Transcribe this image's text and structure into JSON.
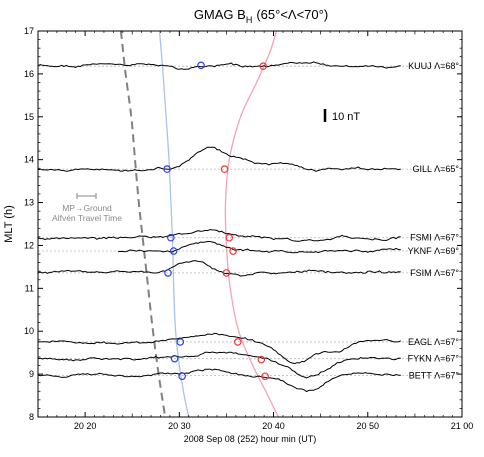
{
  "chart_data": {
    "type": "line",
    "title_main": "GMAG B",
    "title_sub": "H",
    "title_range": "(65°<Λ<70°)",
    "ylabel": "MLT (h)",
    "xlabel": "2008 Sep 08 (252)  hour min (UT)",
    "xlim": [
      15,
      60
    ],
    "ylim": [
      8,
      17
    ],
    "x_ticks": [
      {
        "value": 20,
        "label": "20 20"
      },
      {
        "value": 30,
        "label": "20 30"
      },
      {
        "value": 40,
        "label": "20 40"
      },
      {
        "value": 50,
        "label": "20 50"
      },
      {
        "value": 60,
        "label": "21 00"
      }
    ],
    "y_ticks": [
      8,
      9,
      10,
      11,
      12,
      13,
      14,
      15,
      16,
      17
    ],
    "scale_bar": {
      "label": "10 nT"
    },
    "annotation": {
      "line1": "MP→Ground",
      "line2": "Alfvén Travel Time"
    },
    "stations": [
      {
        "name": "KUUJ",
        "lat_label": "Λ=68°",
        "baseline_mlt": 16.18,
        "x_start": 15,
        "x_end": 53.5,
        "amp": 0.17,
        "seed": 1,
        "features": [
          {
            "x": 30,
            "amp": -0.06,
            "w": 1.5
          },
          {
            "x": 43,
            "amp": 0.07,
            "w": 3
          }
        ],
        "onset_blue": {
          "x": 32.3,
          "mlt": 16.2
        },
        "onset_red": {
          "x": 38.9,
          "mlt": 16.18
        }
      },
      {
        "name": "GILL",
        "lat_label": "Λ=65°",
        "baseline_mlt": 13.78,
        "x_start": 15,
        "x_end": 53.5,
        "amp": 0.17,
        "seed": 2,
        "features": [
          {
            "x": 33,
            "amp": 0.5,
            "w": 2.5
          },
          {
            "x": 37,
            "amp": 0.18,
            "w": 2
          },
          {
            "x": 41,
            "amp": 0.1,
            "w": 2
          }
        ],
        "onset_blue": {
          "x": 28.7,
          "mlt": 13.78
        },
        "onset_red": {
          "x": 34.8,
          "mlt": 13.78
        }
      },
      {
        "name": "FSMI",
        "lat_label": "Λ=67°",
        "baseline_mlt": 12.18,
        "x_start": 15,
        "x_end": 53.5,
        "amp": 0.12,
        "seed": 3,
        "features": [
          {
            "x": 33,
            "amp": 0.22,
            "w": 3
          },
          {
            "x": 42,
            "amp": -0.05,
            "w": 3
          }
        ],
        "onset_blue": {
          "x": 29.1,
          "mlt": 12.18
        },
        "onset_red": {
          "x": 35.3,
          "mlt": 12.18
        }
      },
      {
        "name": "YKNF",
        "lat_label": "Λ=69°",
        "baseline_mlt": 11.87,
        "x_start": 23.5,
        "x_end": 53.5,
        "amp": 0.12,
        "seed": 4,
        "features": [
          {
            "x": 33,
            "amp": 0.22,
            "w": 3
          }
        ],
        "onset_blue": {
          "x": 29.4,
          "mlt": 11.87
        },
        "onset_red": {
          "x": 35.7,
          "mlt": 11.87
        }
      },
      {
        "name": "FSIM",
        "lat_label": "Λ=67°",
        "baseline_mlt": 11.36,
        "x_start": 15,
        "x_end": 53.5,
        "amp": 0.12,
        "seed": 5,
        "features": [
          {
            "x": 31.5,
            "amp": 0.28,
            "w": 2.5
          },
          {
            "x": 37,
            "amp": -0.05,
            "w": 3
          }
        ],
        "onset_blue": {
          "x": 28.8,
          "mlt": 11.36
        },
        "onset_red": {
          "x": 35.0,
          "mlt": 11.36
        }
      },
      {
        "name": "EAGL",
        "lat_label": "Λ=67°",
        "baseline_mlt": 9.75,
        "x_start": 15,
        "x_end": 53.5,
        "amp": 0.1,
        "seed": 6,
        "features": [
          {
            "x": 33.5,
            "amp": 0.22,
            "w": 3
          },
          {
            "x": 42.5,
            "amp": -0.48,
            "w": 2.5
          },
          {
            "x": 46.5,
            "amp": -0.2,
            "w": 1.5
          }
        ],
        "onset_blue": {
          "x": 30.1,
          "mlt": 9.75
        },
        "onset_red": {
          "x": 36.2,
          "mlt": 9.75
        }
      },
      {
        "name": "FYKN",
        "lat_label": "Λ=67°",
        "baseline_mlt": 9.36,
        "x_start": 15,
        "x_end": 53.5,
        "amp": 0.1,
        "seed": 7,
        "features": [
          {
            "x": 33.5,
            "amp": 0.18,
            "w": 3
          },
          {
            "x": 43.5,
            "amp": -0.42,
            "w": 2.5
          }
        ],
        "onset_blue": {
          "x": 29.5,
          "mlt": 9.36
        },
        "onset_red": {
          "x": 38.7,
          "mlt": 9.34
        }
      },
      {
        "name": "BETT",
        "lat_label": "Λ=67°",
        "baseline_mlt": 8.97,
        "x_start": 15,
        "x_end": 53.5,
        "amp": 0.1,
        "seed": 8,
        "features": [
          {
            "x": 33.5,
            "amp": 0.14,
            "w": 3
          },
          {
            "x": 43.5,
            "amp": -0.4,
            "w": 2.5
          }
        ],
        "onset_blue": {
          "x": 30.3,
          "mlt": 8.95
        },
        "onset_red": {
          "x": 39.1,
          "mlt": 8.95
        }
      }
    ],
    "curves": {
      "blue": {
        "color": "#a9c3ee",
        "points": [
          [
            27.9,
            17
          ],
          [
            28.2,
            16.2
          ],
          [
            28.6,
            15.0
          ],
          [
            28.9,
            14.0
          ],
          [
            29.1,
            13.0
          ],
          [
            29.3,
            12.0
          ],
          [
            29.4,
            11.0
          ],
          [
            29.6,
            10.0
          ],
          [
            30.0,
            9.2
          ],
          [
            30.6,
            8.4
          ],
          [
            31.0,
            8.0
          ]
        ]
      },
      "red": {
        "color": "#f4a3b2",
        "points": [
          [
            40.3,
            17
          ],
          [
            39.6,
            16.5
          ],
          [
            38.2,
            15.8
          ],
          [
            36.5,
            15.0
          ],
          [
            35.3,
            14.0
          ],
          [
            34.9,
            13.0
          ],
          [
            35.0,
            12.0
          ],
          [
            35.4,
            11.0
          ],
          [
            36.3,
            10.0
          ],
          [
            37.8,
            9.2
          ],
          [
            39.4,
            8.5
          ],
          [
            40.5,
            8.0
          ]
        ]
      },
      "gray_dashed": {
        "color": "#808080",
        "points": [
          [
            23.8,
            17
          ],
          [
            24.3,
            16.0
          ],
          [
            24.9,
            15.0
          ],
          [
            25.3,
            14.0
          ],
          [
            25.7,
            13.0
          ],
          [
            26.2,
            12.0
          ],
          [
            26.7,
            11.0
          ],
          [
            27.2,
            10.0
          ],
          [
            27.8,
            9.0
          ],
          [
            28.5,
            8.0
          ]
        ]
      }
    },
    "onset_colors": {
      "blue": "#2f3fd8",
      "red": "#e83a3a"
    },
    "grid": false
  }
}
